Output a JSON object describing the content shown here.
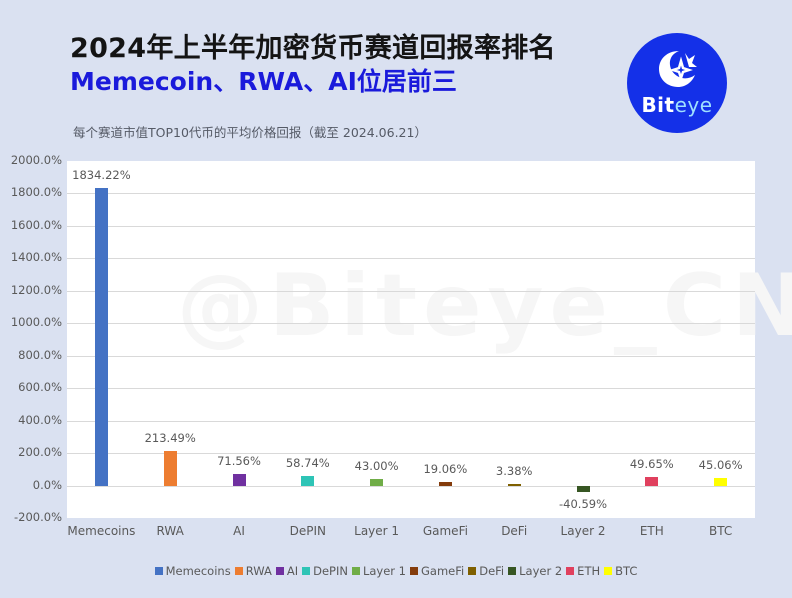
{
  "header": {
    "title": "2024年上半年加密货币赛道回报率排名",
    "subtitle_highlight": "Memecoin、RWA、AI位居前三",
    "logo_text_a": "Bit",
    "logo_text_b": "eye",
    "logo_color": "#1430e8"
  },
  "chart_note": "每个赛道市值TOP10代币的平均价格回报（截至 2024.06.21）",
  "chart_data": {
    "type": "bar",
    "title": "2024年上半年加密货币赛道回报率排名",
    "subtitle": "每个赛道市值TOP10代币的平均价格回报（截至 2024.06.21）",
    "xlabel": "",
    "ylabel": "",
    "ylim": [
      -200,
      2000
    ],
    "yticks": [
      "2000.0%",
      "1800.0%",
      "1600.0%",
      "1400.0%",
      "1200.0%",
      "1000.0%",
      "800.0%",
      "600.0%",
      "400.0%",
      "200.0%",
      "0.0%",
      "-200.0%"
    ],
    "grid": true,
    "legend_position": "bottom",
    "categories": [
      "Memecoins",
      "RWA",
      "AI",
      "DePIN",
      "Layer 1",
      "GameFi",
      "DeFi",
      "Layer 2",
      "ETH",
      "BTC"
    ],
    "values": [
      1834.22,
      213.49,
      71.56,
      58.74,
      43.0,
      19.06,
      3.38,
      -40.59,
      49.65,
      45.06
    ],
    "labels": [
      "1834.22%",
      "213.49%",
      "71.56%",
      "58.74%",
      "43.00%",
      "19.06%",
      "3.38%",
      "-40.59%",
      "49.65%",
      "45.06%"
    ],
    "colors": [
      "#4472c4",
      "#ed7d31",
      "#7030a0",
      "#2ec4b6",
      "#70ad47",
      "#843c0c",
      "#7f6000",
      "#375623",
      "#e0405e",
      "#ffff00"
    ],
    "legend": [
      "Memecoins",
      "RWA",
      "AI",
      "DePIN",
      "Layer 1",
      "GameFi",
      "DeFi",
      "Layer 2",
      "ETH",
      "BTC"
    ],
    "watermark": "@Biteye_CN"
  }
}
